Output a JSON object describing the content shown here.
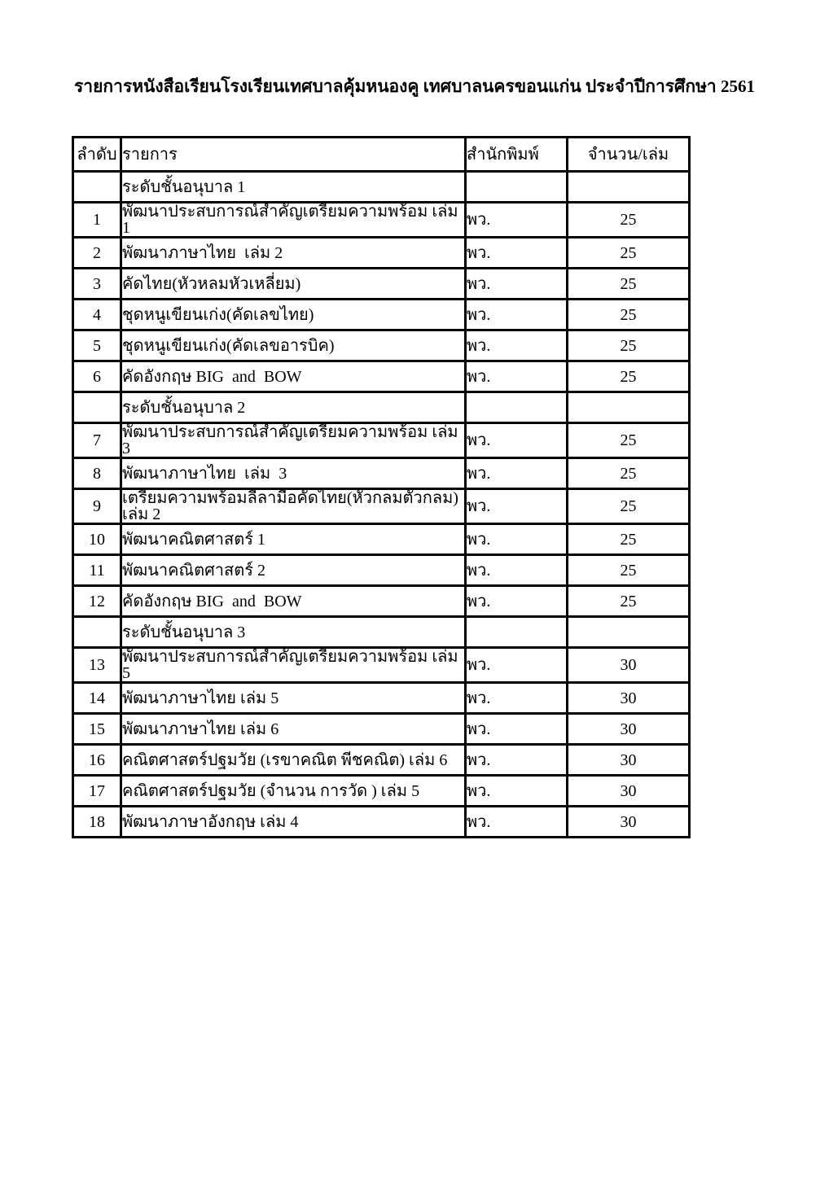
{
  "document": {
    "title": "รายการหนังสือเรียนโรงเรียนเทศบาลคุ้มหนองคู เทศบาลนครขอนแก่น ประจำปีการศึกษา 2561"
  },
  "table": {
    "headers": [
      "ลำดับ",
      "รายการ",
      "สำนักพิมพ์",
      "จำนวน/เล่ม"
    ],
    "rows": [
      {
        "type": "section",
        "title": "ระดับชั้นอนุบาล 1",
        "no": "",
        "publisher": "",
        "qty": ""
      },
      {
        "type": "item",
        "no": "1",
        "name": "พัฒนาประสบการณ์สำคัญเตรียมความพร้อม เล่ม 1",
        "publisher": "พว.",
        "qty": "25"
      },
      {
        "type": "item",
        "no": "2",
        "name": "พัฒนาภาษาไทย  เล่ม 2",
        "publisher": "พว.",
        "qty": "25"
      },
      {
        "type": "item",
        "no": "3",
        "name": "คัดไทย(หัวหลมหัวเหลี่ยม)",
        "publisher": "พว.",
        "qty": "25"
      },
      {
        "type": "item",
        "no": "4",
        "name": "ชุดหนูเขียนเก่ง(คัดเลขไทย)",
        "publisher": "พว.",
        "qty": "25"
      },
      {
        "type": "item",
        "no": "5",
        "name": "ชุดหนูเขียนเก่ง(คัดเลขอารบิค)",
        "publisher": "พว.",
        "qty": "25"
      },
      {
        "type": "item",
        "no": "6",
        "name": "คัดอังกฤษ BIG  and  BOW",
        "publisher": "พว.",
        "qty": "25"
      },
      {
        "type": "section",
        "title": "ระดับชั้นอนุบาล 2",
        "no": "",
        "publisher": "",
        "qty": ""
      },
      {
        "type": "item",
        "no": "7",
        "name": "พัฒนาประสบการณ์สำคัญเตรียมความพร้อม เล่ม 3",
        "publisher": "พว.",
        "qty": "25"
      },
      {
        "type": "item",
        "no": "8",
        "name": "พัฒนาภาษาไทย  เล่ม  3",
        "publisher": "พว.",
        "qty": "25"
      },
      {
        "type": "item",
        "no": "9",
        "name": "เตรียมความพร้อมลีลามือคัดไทย(หัวกลมตัวกลม) เล่ม 2",
        "publisher": "พว.",
        "qty": "25"
      },
      {
        "type": "item",
        "no": "10",
        "name": "พัฒนาคณิตศาสตร์ 1",
        "publisher": "พว.",
        "qty": "25"
      },
      {
        "type": "item",
        "no": "11",
        "name": "พัฒนาคณิตศาสตร์ 2",
        "publisher": "พว.",
        "qty": "25"
      },
      {
        "type": "item",
        "no": "12",
        "name": "คัดอังกฤษ BIG  and  BOW",
        "publisher": "พว.",
        "qty": "25"
      },
      {
        "type": "section",
        "title": "ระดับชั้นอนุบาล 3",
        "no": "",
        "publisher": "",
        "qty": ""
      },
      {
        "type": "item",
        "no": "13",
        "name": "พัฒนาประสบการณ์สำคัญเตรียมความพร้อม เล่ม 5",
        "publisher": "พว.",
        "qty": "30"
      },
      {
        "type": "item",
        "no": "14",
        "name": "พัฒนาภาษาไทย เล่ม 5",
        "publisher": "พว.",
        "qty": "30"
      },
      {
        "type": "item",
        "no": "15",
        "name": "พัฒนาภาษาไทย เล่ม 6",
        "publisher": "พว.",
        "qty": "30"
      },
      {
        "type": "item",
        "no": "16",
        "name": "คณิตศาสตร์ปฐมวัย (เรขาคณิต พีชคณิต) เล่ม 6",
        "publisher": "พว.",
        "qty": "30"
      },
      {
        "type": "item",
        "no": "17",
        "name": "คณิตศาสตร์ปฐมวัย (จำนวน การวัด ) เล่ม 5",
        "publisher": "พว.",
        "qty": "30"
      },
      {
        "type": "item",
        "no": "18",
        "name": "พัฒนาภาษาอังกฤษ เล่ม 4",
        "publisher": "พว.",
        "qty": "30"
      }
    ]
  }
}
